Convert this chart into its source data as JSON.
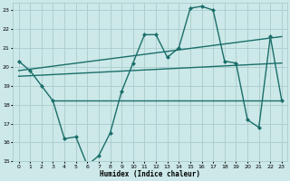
{
  "xlabel": "Humidex (Indice chaleur)",
  "background_color": "#cce8e8",
  "grid_color": "#aacccc",
  "line_color": "#1a6e6a",
  "xlim": [
    -0.5,
    23.5
  ],
  "ylim": [
    15,
    23.4
  ],
  "yticks": [
    15,
    16,
    17,
    18,
    19,
    20,
    21,
    22,
    23
  ],
  "xticks": [
    0,
    1,
    2,
    3,
    4,
    5,
    6,
    7,
    8,
    9,
    10,
    11,
    12,
    13,
    14,
    15,
    16,
    17,
    18,
    19,
    20,
    21,
    22,
    23
  ],
  "main_x": [
    0,
    1,
    2,
    3,
    4,
    5,
    6,
    7,
    8,
    9,
    10,
    11,
    12,
    13,
    14,
    15,
    16,
    17,
    18,
    19,
    20,
    21,
    22,
    23
  ],
  "main_y": [
    20.3,
    19.8,
    19.0,
    18.2,
    16.2,
    16.3,
    14.8,
    15.3,
    16.5,
    18.7,
    20.2,
    21.7,
    21.7,
    20.5,
    21.0,
    23.1,
    23.2,
    23.0,
    20.3,
    20.2,
    17.2,
    16.8,
    21.6,
    18.2
  ],
  "trend1_x": [
    0,
    23
  ],
  "trend1_y": [
    19.8,
    21.6
  ],
  "trend2_x": [
    0,
    23
  ],
  "trend2_y": [
    19.5,
    20.2
  ],
  "hline_y": 18.2,
  "hline_x_start": 3,
  "hline_x_end": 23
}
